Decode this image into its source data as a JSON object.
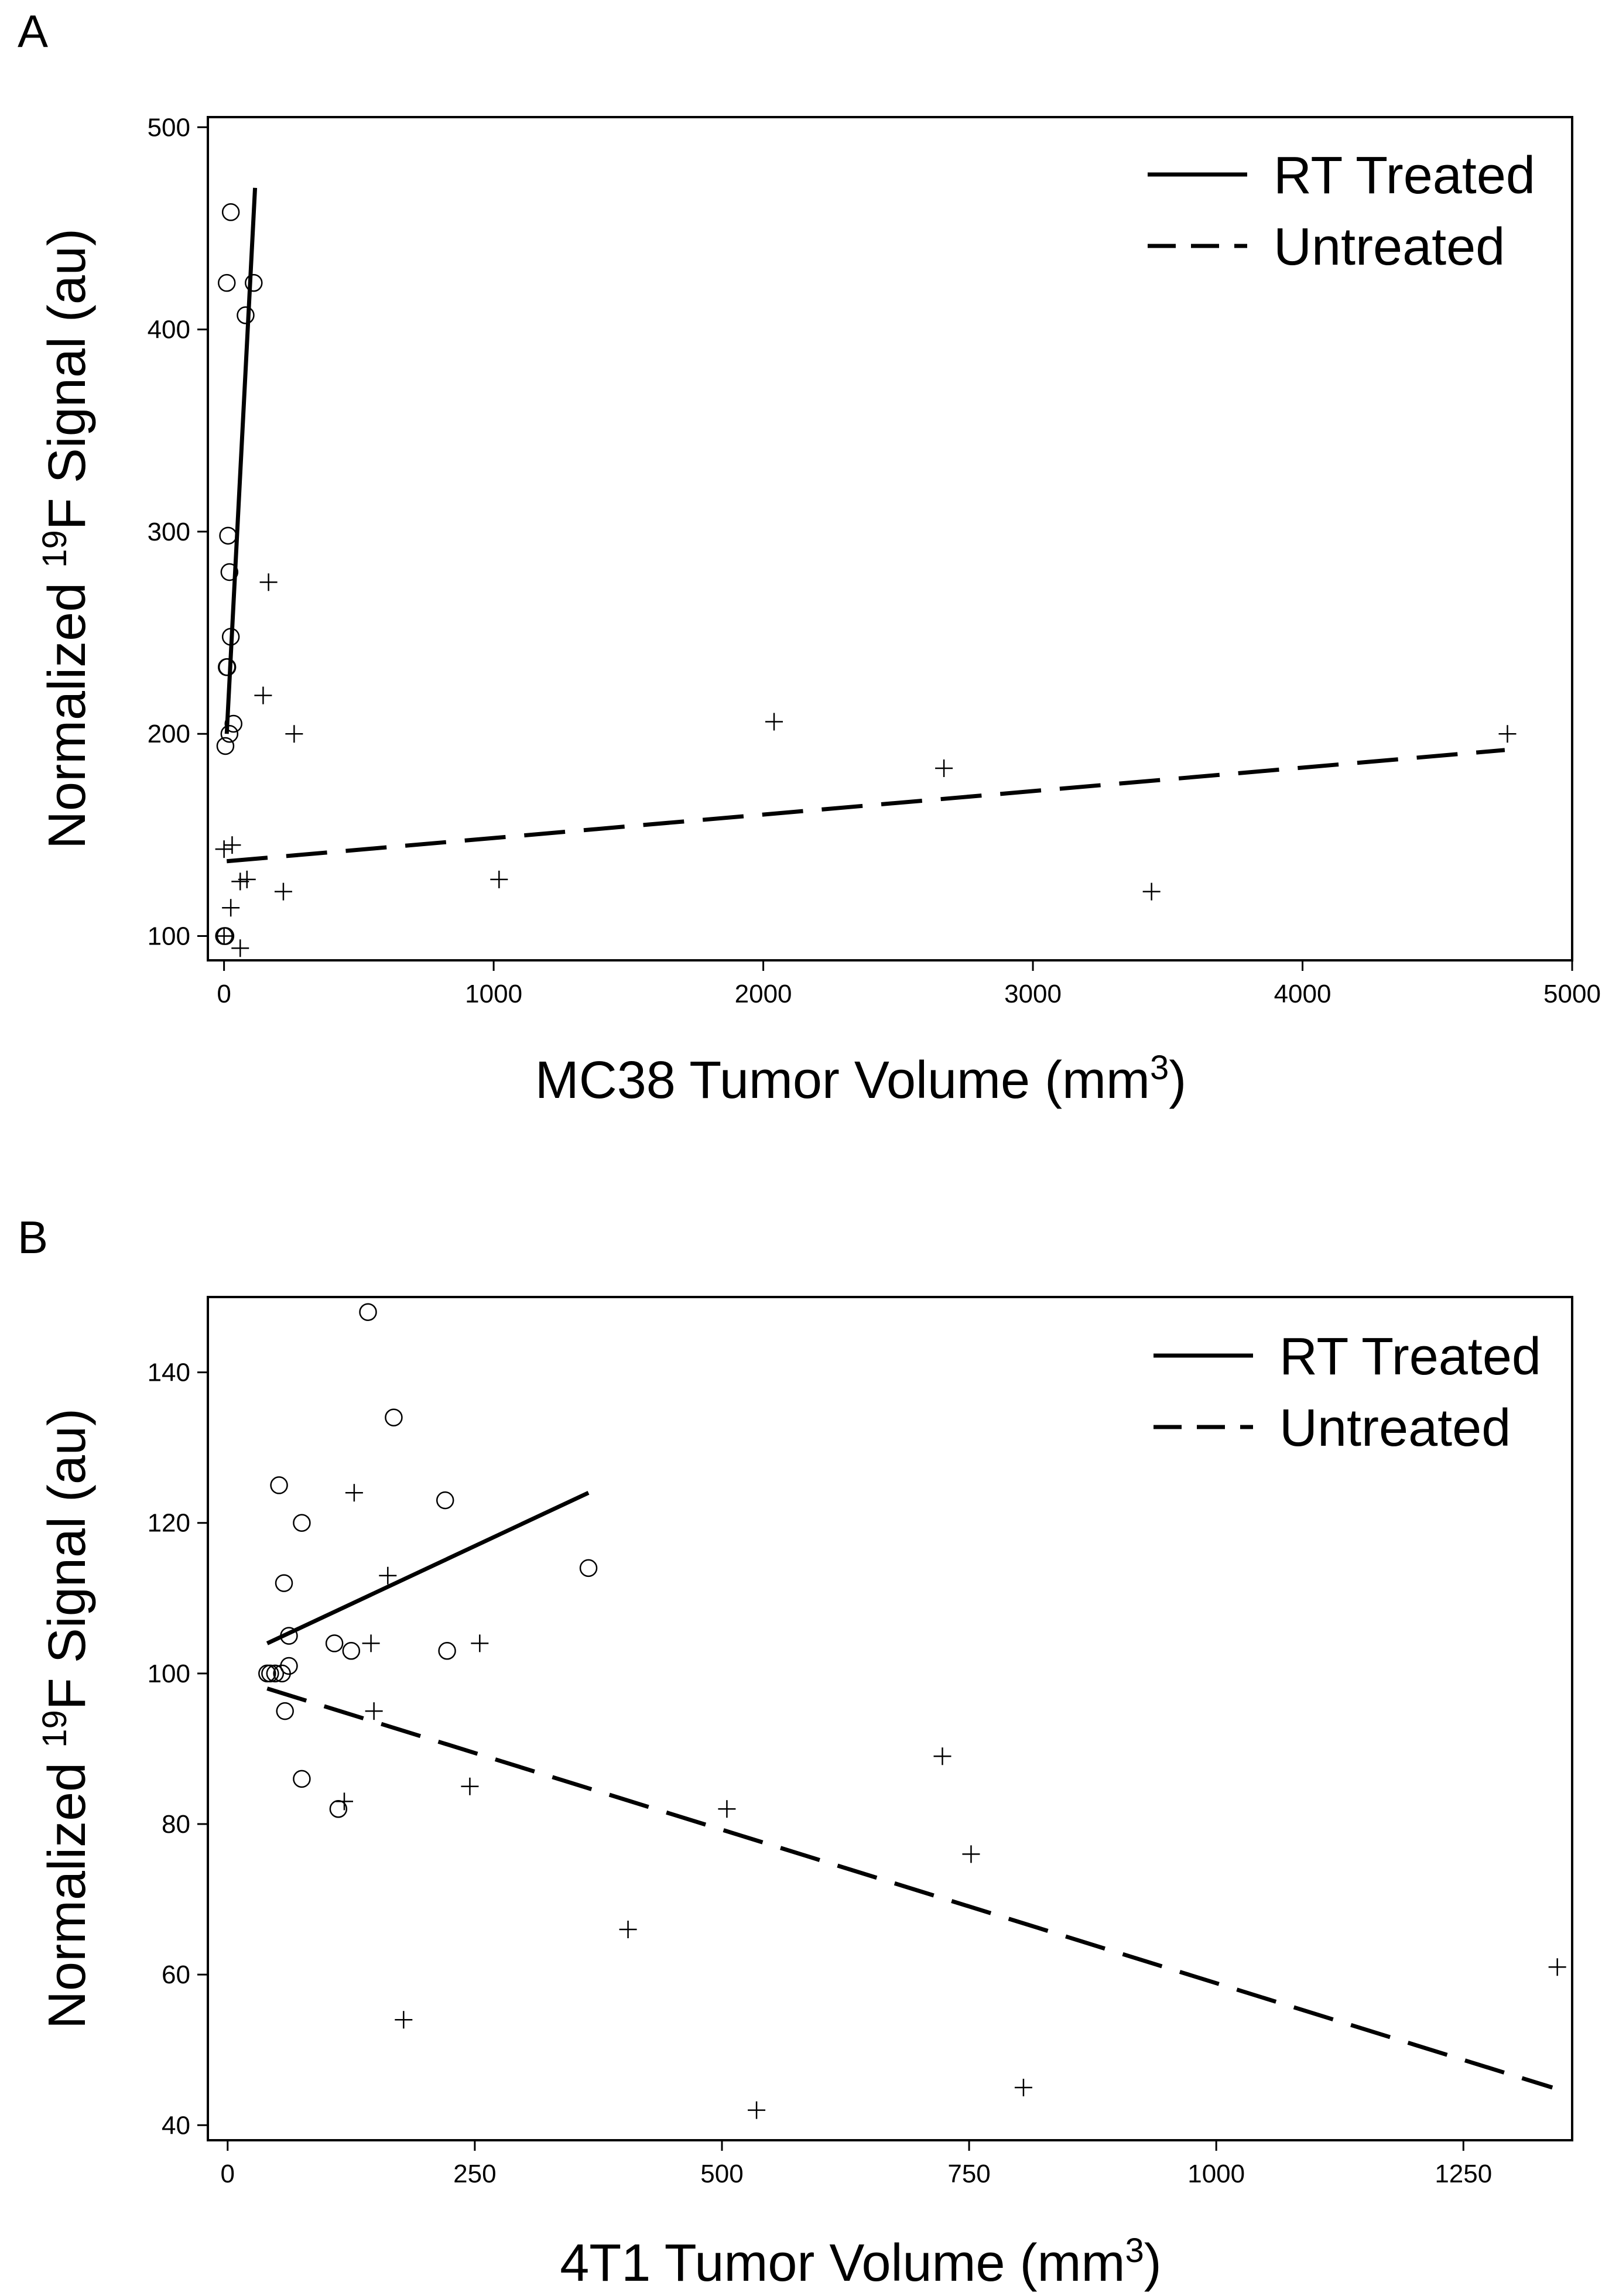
{
  "panels": [
    {
      "letter": "A",
      "chart_data": {
        "type": "scatter",
        "title": "",
        "xlabel": {
          "main": "MC38 Tumor Volume (mm",
          "sup": "3",
          "end": ")"
        },
        "ylabel": {
          "pre": "Normalized ",
          "sup": "19",
          "post": "F Signal (au)"
        },
        "xlim": [
          -60,
          5000
        ],
        "ylim": [
          88,
          505
        ],
        "xticks": [
          0,
          1000,
          2000,
          3000,
          4000,
          5000
        ],
        "yticks": [
          100,
          200,
          300,
          400,
          500
        ],
        "legend": {
          "position": "top-right",
          "entries": [
            "RT Treated",
            "Untreated"
          ]
        },
        "series": [
          {
            "name": "RT Treated",
            "marker": "circle",
            "line": "solid",
            "points": [
              [
                25,
                458
              ],
              [
                10,
                423
              ],
              [
                110,
                423
              ],
              [
                80,
                407
              ],
              [
                15,
                298
              ],
              [
                20,
                280
              ],
              [
                25,
                248
              ],
              [
                10,
                233
              ],
              [
                12,
                233
              ],
              [
                35,
                205
              ],
              [
                20,
                200
              ],
              [
                5,
                194
              ],
              [
                0,
                100
              ],
              [
                5,
                100
              ]
            ],
            "fit": [
              [
                10,
                200
              ],
              [
                115,
                470
              ]
            ]
          },
          {
            "name": "Untreated",
            "marker": "plus",
            "line": "dashed",
            "points": [
              [
                165,
                275
              ],
              [
                145,
                219
              ],
              [
                260,
                200
              ],
              [
                2040,
                206
              ],
              [
                2670,
                183
              ],
              [
                4760,
                200
              ],
              [
                0,
                143
              ],
              [
                30,
                145
              ],
              [
                25,
                114
              ],
              [
                60,
                127
              ],
              [
                85,
                128
              ],
              [
                220,
                122
              ],
              [
                1020,
                128
              ],
              [
                3440,
                122
              ],
              [
                60,
                94
              ],
              [
                0,
                100
              ]
            ],
            "fit": [
              [
                10,
                137
              ],
              [
                4750,
                192
              ]
            ]
          }
        ]
      }
    },
    {
      "letter": "B",
      "chart_data": {
        "type": "scatter",
        "title": "",
        "xlabel": {
          "main": "4T1 Tumor Volume (mm",
          "sup": "3",
          "end": ")"
        },
        "ylabel": {
          "pre": "Normalized ",
          "sup": "19",
          "post": "F Signal (au)"
        },
        "xlim": [
          -20,
          1360
        ],
        "ylim": [
          38,
          150
        ],
        "xticks": [
          0,
          250,
          500,
          750,
          1000,
          1250
        ],
        "yticks": [
          40,
          60,
          80,
          100,
          120,
          140
        ],
        "legend": {
          "position": "top-right",
          "entries": [
            "RT Treated",
            "Untreated"
          ]
        },
        "series": [
          {
            "name": "RT Treated",
            "marker": "circle",
            "line": "solid",
            "points": [
              [
                142,
                148
              ],
              [
                168,
                134
              ],
              [
                52,
                125
              ],
              [
                220,
                123
              ],
              [
                75,
                120
              ],
              [
                365,
                114
              ],
              [
                57,
                112
              ],
              [
                62,
                105
              ],
              [
                108,
                104
              ],
              [
                125,
                103
              ],
              [
                222,
                103
              ],
              [
                62,
                101
              ],
              [
                40,
                100
              ],
              [
                43,
                100
              ],
              [
                48,
                100
              ],
              [
                55,
                100
              ],
              [
                58,
                95
              ],
              [
                75,
                86
              ],
              [
                112,
                82
              ]
            ],
            "fit": [
              [
                40,
                104
              ],
              [
                365,
                124
              ]
            ]
          },
          {
            "name": "Untreated",
            "marker": "plus",
            "line": "dashed",
            "points": [
              [
                128,
                124
              ],
              [
                162,
                113
              ],
              [
                145,
                104
              ],
              [
                255,
                104
              ],
              [
                148,
                95
              ],
              [
                118,
                83
              ],
              [
                245,
                85
              ],
              [
                505,
                82
              ],
              [
                723,
                89
              ],
              [
                752,
                76
              ],
              [
                405,
                66
              ],
              [
                178,
                54
              ],
              [
                535,
                42
              ],
              [
                805,
                45
              ],
              [
                1345,
                61
              ]
            ],
            "fit": [
              [
                40,
                98
              ],
              [
                1340,
                45
              ]
            ]
          }
        ]
      }
    }
  ]
}
